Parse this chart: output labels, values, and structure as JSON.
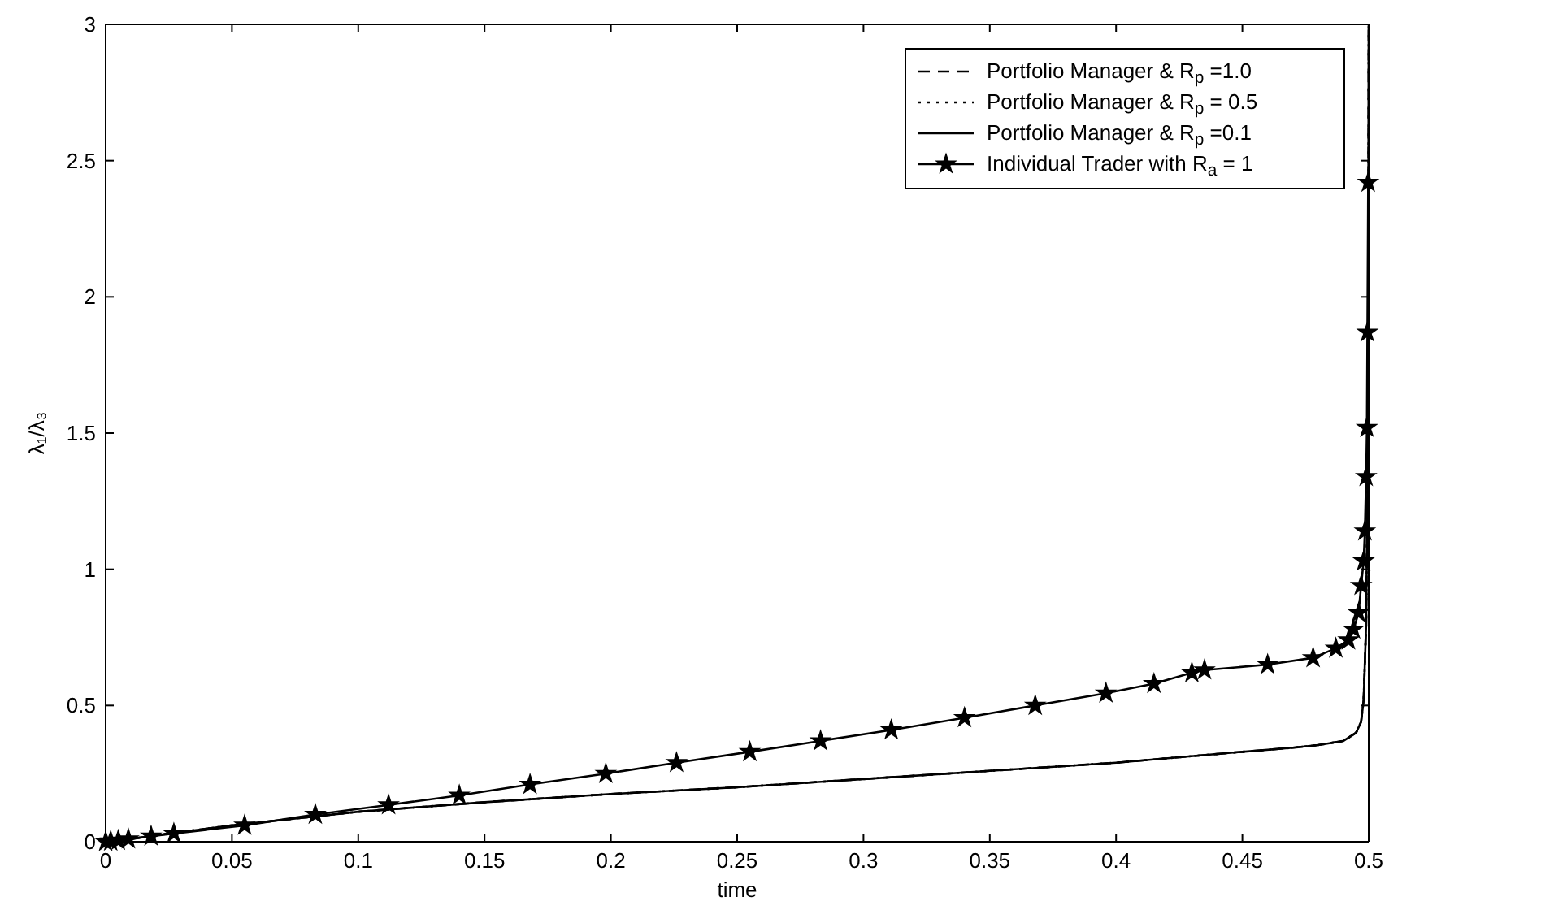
{
  "chart_data": {
    "type": "line",
    "xlabel": "time",
    "ylabel": "λ₁/λ₃",
    "xlim": [
      0,
      0.5
    ],
    "ylim": [
      0,
      3
    ],
    "xticks": [
      0,
      0.05,
      0.1,
      0.15,
      0.2,
      0.25,
      0.3,
      0.35,
      0.4,
      0.45,
      0.5
    ],
    "yticks": [
      0,
      0.5,
      1,
      1.5,
      2,
      2.5,
      3
    ],
    "grid": false,
    "legend": "top right",
    "series": [
      {
        "name": "Portfolio Manager & R$_{p}$ =1.0",
        "color": "#000000",
        "line_style": "dashed",
        "marker": "none",
        "x": [
          0,
          0.01,
          0.025,
          0.05,
          0.075,
          0.1,
          0.15,
          0.2,
          0.25,
          0.3,
          0.35,
          0.4,
          0.45,
          0.47,
          0.48,
          0.49,
          0.495,
          0.497,
          0.498,
          0.499,
          0.4995,
          0.4998,
          0.5
        ],
        "values": [
          0,
          0.01,
          0.03,
          0.06,
          0.085,
          0.11,
          0.145,
          0.175,
          0.2,
          0.23,
          0.26,
          0.29,
          0.33,
          0.345,
          0.355,
          0.37,
          0.4,
          0.44,
          0.52,
          0.8,
          1.3,
          2,
          3
        ]
      },
      {
        "name": "Portfolio Manager & R$_{p}$ = 0.5",
        "color": "#000000",
        "line_style": "dotted",
        "marker": "none",
        "x": [
          0.002,
          0.01,
          0.025,
          0.05,
          0.075,
          0.1,
          0.15,
          0.2,
          0.25,
          0.3,
          0.35,
          0.4,
          0.45,
          0.47,
          0.48,
          0.49,
          0.495,
          0.497,
          0.498,
          0.499,
          0.4995,
          0.4998,
          0.5
        ],
        "values": [
          0.002,
          0.01,
          0.03,
          0.06,
          0.085,
          0.11,
          0.145,
          0.175,
          0.2,
          0.23,
          0.26,
          0.29,
          0.33,
          0.345,
          0.355,
          0.37,
          0.4,
          0.44,
          0.52,
          0.8,
          1.3,
          2,
          3
        ]
      },
      {
        "name": "Portfolio Manager & R$_{p}$ =0.1",
        "color": "#000000",
        "line_style": "solid",
        "marker": "none",
        "x": [
          0.004,
          0.01,
          0.025,
          0.05,
          0.075,
          0.1,
          0.15,
          0.2,
          0.25,
          0.3,
          0.35,
          0.4,
          0.45,
          0.47,
          0.48,
          0.49,
          0.495,
          0.497,
          0.498,
          0.499,
          0.4995,
          0.4998,
          0.5
        ],
        "values": [
          0.004,
          0.01,
          0.03,
          0.06,
          0.085,
          0.11,
          0.145,
          0.175,
          0.2,
          0.23,
          0.26,
          0.29,
          0.33,
          0.345,
          0.355,
          0.37,
          0.4,
          0.44,
          0.52,
          0.8,
          1.3,
          2,
          3
        ]
      },
      {
        "name": "Individual Trader with R$_{a}$ = 1",
        "color": "#000000",
        "line_style": "solid",
        "marker": "star",
        "x": [
          0,
          0.002,
          0.005,
          0.009,
          0.018,
          0.027,
          0.055,
          0.083,
          0.112,
          0.14,
          0.168,
          0.198,
          0.226,
          0.255,
          0.283,
          0.311,
          0.34,
          0.368,
          0.396,
          0.415,
          0.43,
          0.435,
          0.46,
          0.478,
          0.487,
          0.492,
          0.494,
          0.496,
          0.497,
          0.498,
          0.4985,
          0.499,
          0.4993,
          0.4995,
          0.4998
        ],
        "values": [
          0,
          0.002,
          0.005,
          0.01,
          0.02,
          0.03,
          0.06,
          0.1,
          0.135,
          0.17,
          0.21,
          0.25,
          0.29,
          0.33,
          0.37,
          0.41,
          0.455,
          0.5,
          0.545,
          0.58,
          0.62,
          0.63,
          0.65,
          0.675,
          0.71,
          0.74,
          0.78,
          0.84,
          0.94,
          1.03,
          1.14,
          1.34,
          1.52,
          1.87,
          2.42
        ]
      }
    ]
  }
}
